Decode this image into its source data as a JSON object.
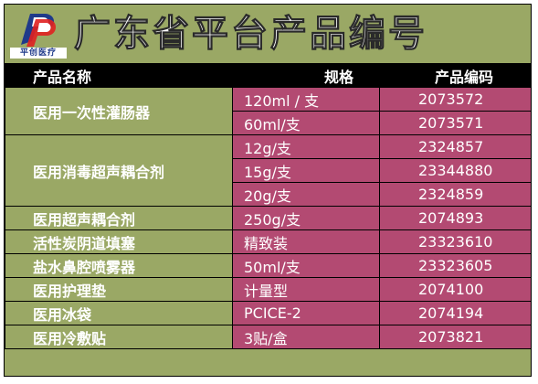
{
  "logo": {
    "text": "平创医疗",
    "colors": {
      "red": "#e02020",
      "blue": "#1f3a8a"
    }
  },
  "title": "广东省平台产品编号",
  "columns": [
    "产品名称",
    "规格",
    "产品编码"
  ],
  "products": [
    {
      "name": "医用一次性灌肠器",
      "items": [
        {
          "spec": "120ml / 支",
          "code": "2073572"
        },
        {
          "spec": "60ml/支",
          "code": "2073571"
        }
      ]
    },
    {
      "name": "医用消毒超声耦合剂",
      "items": [
        {
          "spec": "12g/支",
          "code": "2324857"
        },
        {
          "spec": "15g/支",
          "code": "23344880"
        },
        {
          "spec": "20g/支",
          "code": "2324859"
        }
      ]
    },
    {
      "name": "医用超声耦合剂",
      "items": [
        {
          "spec": "250g/支",
          "code": "2074893"
        }
      ]
    },
    {
      "name": "活性炭阴道填塞",
      "items": [
        {
          "spec": "精致装",
          "code": "23323610"
        }
      ]
    },
    {
      "name": "盐水鼻腔喷雾器",
      "items": [
        {
          "spec": "50ml/支",
          "code": "23323605"
        }
      ]
    },
    {
      "name": "医用护理垫",
      "items": [
        {
          "spec": "计量型",
          "code": "2074100"
        }
      ]
    },
    {
      "name": "医用冰袋",
      "items": [
        {
          "spec": "PCICE-2",
          "code": "2074194"
        }
      ]
    },
    {
      "name": "医用冷敷贴",
      "items": [
        {
          "spec": "3贴/盒",
          "code": "2073821"
        }
      ]
    }
  ],
  "colors": {
    "olive": "#9aa865",
    "magenta": "#b34a72",
    "header": "#000000"
  }
}
